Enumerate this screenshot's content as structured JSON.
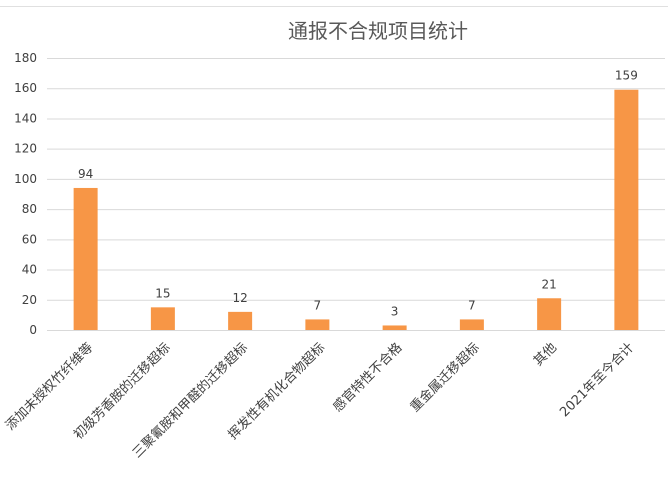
{
  "chart_data": {
    "type": "bar",
    "title": "通报不合规项目统计",
    "categories": [
      "添加未授权竹纤维等",
      "初级芳香胺的迁移超标",
      "三聚氰胺和甲醛的迁移超标",
      "挥发性有机化合物超标",
      "感官特性不合格",
      "重金属迁移超标",
      "其他",
      "2021年至今合计"
    ],
    "values": [
      94,
      15,
      12,
      7,
      3,
      7,
      21,
      159
    ],
    "ylim": [
      0,
      180
    ],
    "yticks": [
      0,
      20,
      40,
      60,
      80,
      100,
      120,
      140,
      160,
      180
    ],
    "grid": true,
    "data_labels": true,
    "xlabel": "",
    "ylabel": "",
    "colors": {
      "bar": "#F79646",
      "grid": "#D9D9D9",
      "text": "#404040",
      "title": "#595959"
    }
  }
}
